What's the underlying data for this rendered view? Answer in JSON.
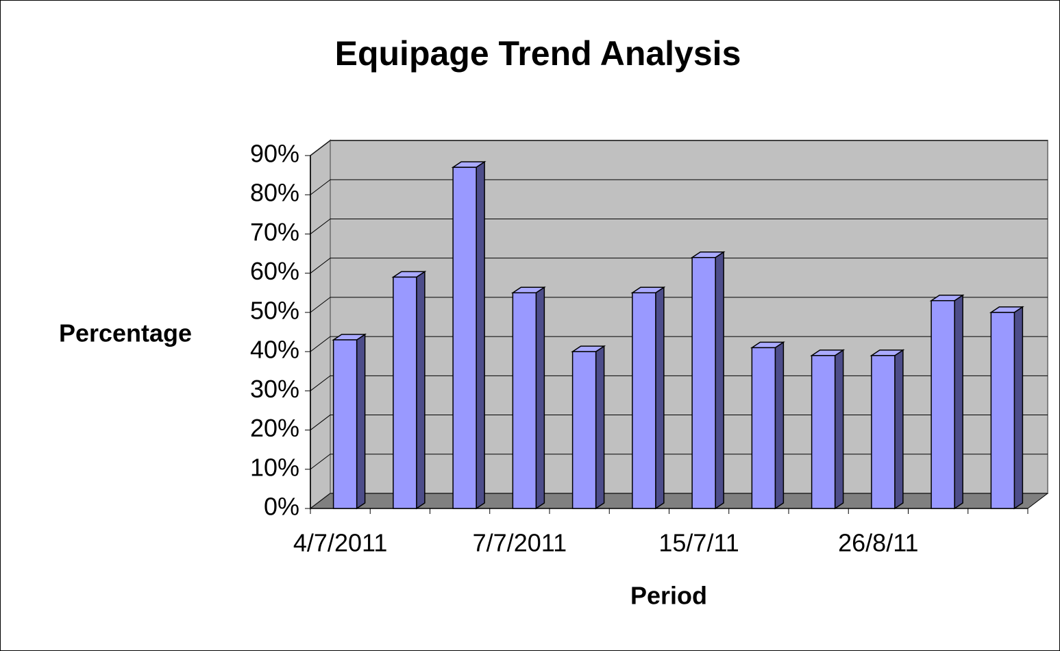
{
  "chart_data": {
    "type": "bar3d",
    "title": "Equipage Trend Analysis",
    "x_label": "Period",
    "y_label": "Percentage",
    "categories": [
      "4/7/2011",
      null,
      null,
      "7/7/2011",
      null,
      null,
      "15/7/11",
      null,
      null,
      "26/8/11",
      null,
      null
    ],
    "values": [
      43,
      59,
      87,
      55,
      40,
      55,
      64,
      41,
      39,
      39,
      53,
      50
    ],
    "color": "#9999ff",
    "ylim": [
      0,
      90
    ],
    "yticks": [
      {
        "value": 0,
        "label": "0%"
      },
      {
        "value": 10,
        "label": "10%"
      },
      {
        "value": 20,
        "label": "20%"
      },
      {
        "value": 30,
        "label": "30%"
      },
      {
        "value": 40,
        "label": "40%"
      },
      {
        "value": 50,
        "label": "50%"
      },
      {
        "value": 60,
        "label": "60%"
      },
      {
        "value": 70,
        "label": "70%"
      },
      {
        "value": 80,
        "label": "80%"
      },
      {
        "value": 90,
        "label": "90%"
      }
    ],
    "grid": true
  }
}
